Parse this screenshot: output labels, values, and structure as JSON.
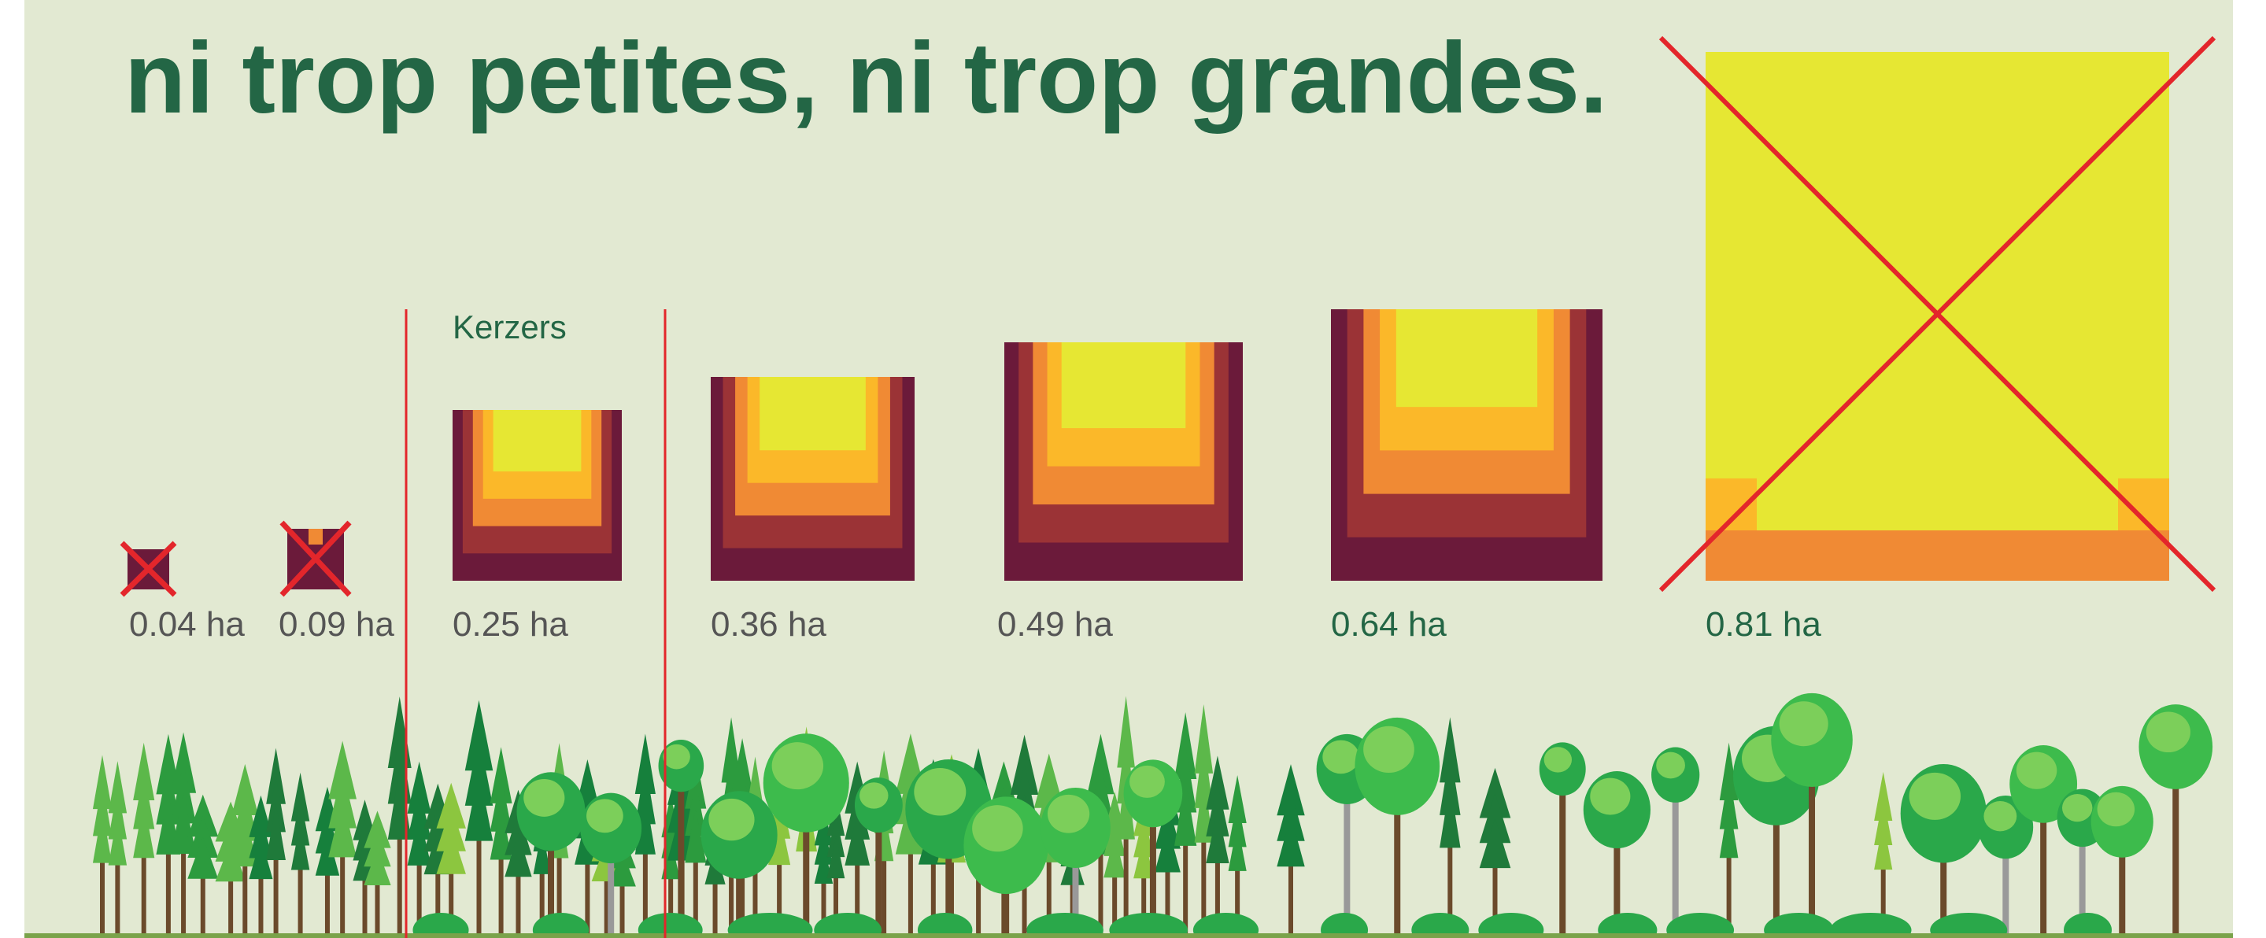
{
  "title": "ni trop petites, ni trop grandes.",
  "annotation": "Kerzers",
  "plots": [
    {
      "label": "0.04 ha"
    },
    {
      "label": "0.09 ha"
    },
    {
      "label": "0.25 ha"
    },
    {
      "label": "0.36 ha"
    },
    {
      "label": "0.49 ha"
    },
    {
      "label": "0.64 ha"
    },
    {
      "label": "0.81 ha"
    }
  ]
}
